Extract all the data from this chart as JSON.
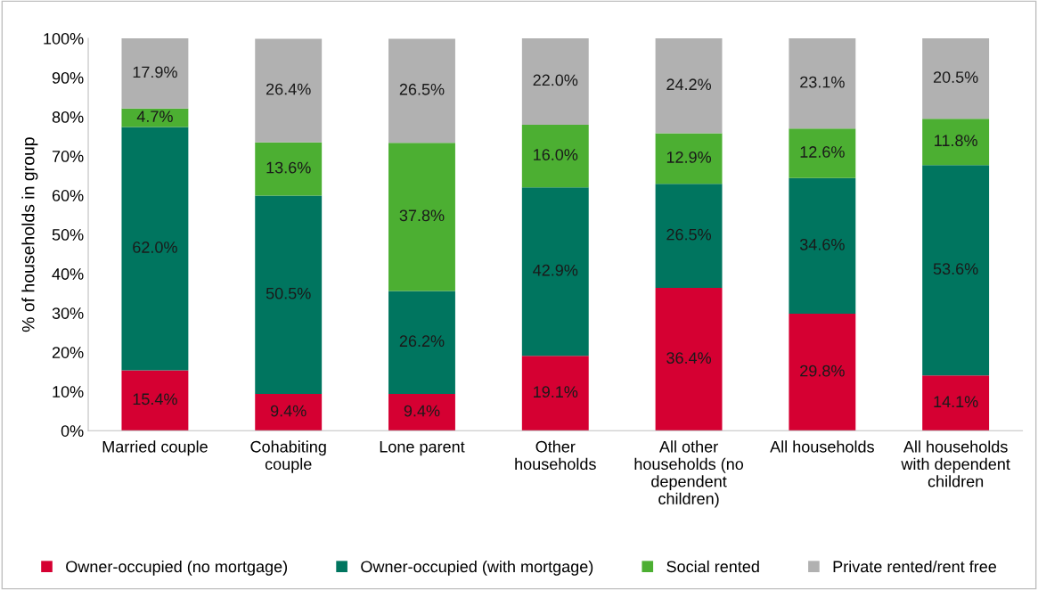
{
  "chart_data": {
    "type": "bar",
    "stacked": true,
    "ylabel": "% of households in group",
    "categories": [
      "Married couple",
      "Cohabiting couple",
      "Lone parent",
      "Other households",
      "All other households (no dependent children)",
      "All households",
      "All households with dependent children"
    ],
    "series": [
      {
        "name": "Owner-occupied (no mortgage)",
        "color": "#d50032",
        "values": [
          15.4,
          9.4,
          9.4,
          19.1,
          36.4,
          29.8,
          14.1
        ],
        "value_labels": [
          "15.4%",
          "9.4%",
          "9.4%",
          "19.1%",
          "36.4%",
          "29.8%",
          "14.1%"
        ]
      },
      {
        "name": "Owner-occupied (with mortgage)",
        "color": "#00755f",
        "values": [
          62.0,
          50.5,
          26.2,
          42.9,
          26.5,
          34.6,
          53.6
        ],
        "value_labels": [
          "62.0%",
          "50.5%",
          "26.2%",
          "42.9%",
          "26.5%",
          "34.6%",
          "53.6%"
        ]
      },
      {
        "name": "Social rented",
        "color": "#4caf32",
        "values": [
          4.7,
          13.6,
          37.8,
          16.0,
          12.9,
          12.6,
          11.8
        ],
        "value_labels": [
          "4.7%",
          "13.6%",
          "37.8%",
          "16.0%",
          "12.9%",
          "12.6%",
          "11.8%"
        ]
      },
      {
        "name": "Private rented/rent free",
        "color": "#b1b1b1",
        "values": [
          17.9,
          26.4,
          26.5,
          22.0,
          24.2,
          23.1,
          20.5
        ],
        "value_labels": [
          "17.9%",
          "26.4%",
          "26.5%",
          "22.0%",
          "24.2%",
          "23.1%",
          "20.5%"
        ]
      }
    ],
    "ylim": [
      0,
      100
    ],
    "yticks": [
      {
        "value": 0,
        "label": "0%"
      },
      {
        "value": 10,
        "label": "10%"
      },
      {
        "value": 20,
        "label": "20%"
      },
      {
        "value": 30,
        "label": "30%"
      },
      {
        "value": 40,
        "label": "40%"
      },
      {
        "value": 50,
        "label": "50%"
      },
      {
        "value": 60,
        "label": "60%"
      },
      {
        "value": 70,
        "label": "70%"
      },
      {
        "value": 80,
        "label": "80%"
      },
      {
        "value": 90,
        "label": "90%"
      },
      {
        "value": 100,
        "label": "100%"
      }
    ],
    "grid": false,
    "legend": "bottom"
  }
}
